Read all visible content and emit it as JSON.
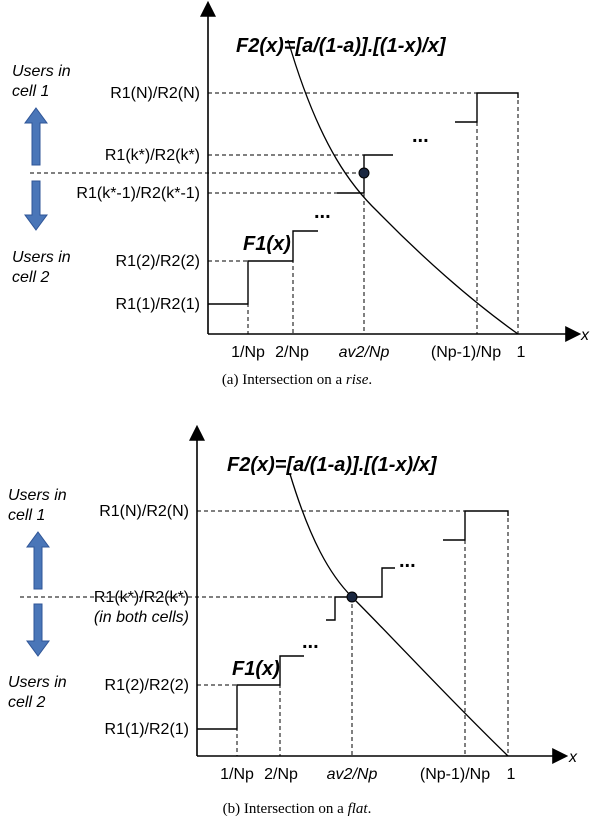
{
  "panel_a": {
    "f2_label": "F2(x)=[a/(1-a)].[(1-x)/x]",
    "f1_label": "F1(x)",
    "x_axis_label": "x",
    "users_cell1": [
      "Users in",
      "cell 1"
    ],
    "users_cell2": [
      "Users in",
      "cell 2"
    ],
    "y_labels": {
      "rN": "R1(N)/R2(N)",
      "rk": "R1(k*)/R2(k*)",
      "rk1": "R1(k*-1)/R2(k*-1)",
      "r2": "R1(2)/R2(2)",
      "r1": "R1(1)/R2(1)"
    },
    "x_ticks": {
      "t1": "1/Np",
      "t2": "2/Np",
      "tav": "av2/Np",
      "tn1": "(Np-1)/Np",
      "tone": "1"
    },
    "ellipsis": "...",
    "caption": {
      "prefix": "(a) Intersection on a ",
      "emph": "rise",
      "suffix": "."
    }
  },
  "panel_b": {
    "f2_label": "F2(x)=[a/(1-a)].[(1-x)/x]",
    "f1_label": "F1(x)",
    "x_axis_label": "x",
    "users_cell1": [
      "Users in",
      "cell 1"
    ],
    "users_cell2": [
      "Users in",
      "cell 2"
    ],
    "y_labels": {
      "rN": "R1(N)/R2(N)",
      "rk": "R1(k*)/R2(k*)",
      "rk_note": "(in both cells)",
      "r2": "R1(2)/R2(2)",
      "r1": "R1(1)/R2(1)"
    },
    "x_ticks": {
      "t1": "1/Np",
      "t2": "2/Np",
      "tav": "av2/Np",
      "tn1": "(Np-1)/Np",
      "tone": "1"
    },
    "ellipsis": "...",
    "caption": {
      "prefix": "(b) Intersection on a ",
      "emph": "flat",
      "suffix": "."
    }
  },
  "colors": {
    "arrow_blue": "#4a76b8",
    "arrow_stroke": "#2f5597",
    "ink": "#000000"
  }
}
